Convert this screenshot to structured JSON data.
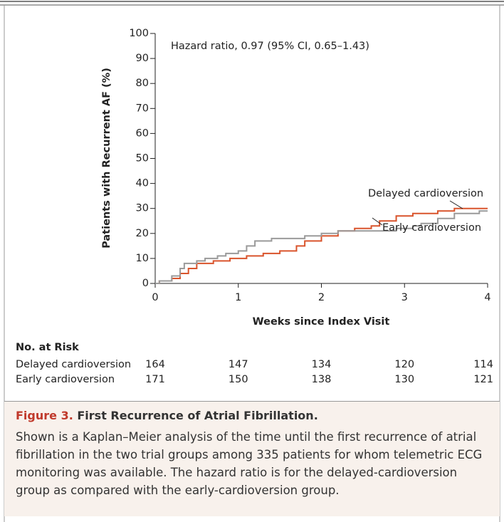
{
  "chart_data": {
    "type": "line",
    "step": true,
    "ylabel": "Patients with Recurrent AF (%)",
    "xlabel": "Weeks since Index Visit",
    "annotation": "Hazard ratio, 0.97 (95% CI, 0.65–1.43)",
    "xlim": [
      0,
      4
    ],
    "xticks": [
      0,
      1,
      2,
      3,
      4
    ],
    "ylim": [
      0,
      100
    ],
    "yticks": [
      0,
      10,
      20,
      30,
      40,
      50,
      60,
      70,
      80,
      90,
      100
    ],
    "series": [
      {
        "name": "Delayed cardioversion",
        "color": "#d9542c",
        "x": [
          0,
          0.05,
          0.2,
          0.3,
          0.4,
          0.5,
          0.7,
          0.9,
          1.1,
          1.3,
          1.5,
          1.7,
          1.8,
          2.0,
          2.2,
          2.4,
          2.6,
          2.7,
          2.9,
          3.1,
          3.4,
          3.6,
          4
        ],
        "values": [
          0,
          1,
          2,
          4,
          6,
          8,
          9,
          10,
          11,
          12,
          13,
          15,
          17,
          19,
          21,
          22,
          23,
          25,
          27,
          28,
          29,
          30,
          30
        ]
      },
      {
        "name": "Early cardioversion",
        "color": "#9a9a9a",
        "x": [
          0,
          0.05,
          0.2,
          0.3,
          0.35,
          0.5,
          0.6,
          0.75,
          0.85,
          1.0,
          1.1,
          1.2,
          1.4,
          1.8,
          2.0,
          2.2,
          2.9,
          3.1,
          3.2,
          3.4,
          3.6,
          3.9,
          4
        ],
        "values": [
          0,
          1,
          3,
          6,
          8,
          9,
          10,
          11,
          12,
          13,
          15,
          17,
          18,
          19,
          20,
          21,
          22,
          23,
          24,
          26,
          28,
          29,
          29
        ]
      }
    ]
  },
  "risk_table": {
    "title": "No. at Risk",
    "rows": [
      {
        "name": "Delayed cardioversion",
        "values": [
          164,
          147,
          134,
          120,
          114
        ]
      },
      {
        "name": "Early cardioversion",
        "values": [
          171,
          150,
          138,
          130,
          121
        ]
      }
    ]
  },
  "caption": {
    "label": "Figure 3.",
    "title": "First Recurrence of Atrial Fibrillation.",
    "body": "Shown is a Kaplan–Meier analysis of the time until the first recurrence of atrial fibrillation in the two trial groups among 335 patients for whom telemetric ECG monitoring was available. The hazard ratio is for the delayed-cardioversion group as compared with the early-cardioversion group."
  }
}
